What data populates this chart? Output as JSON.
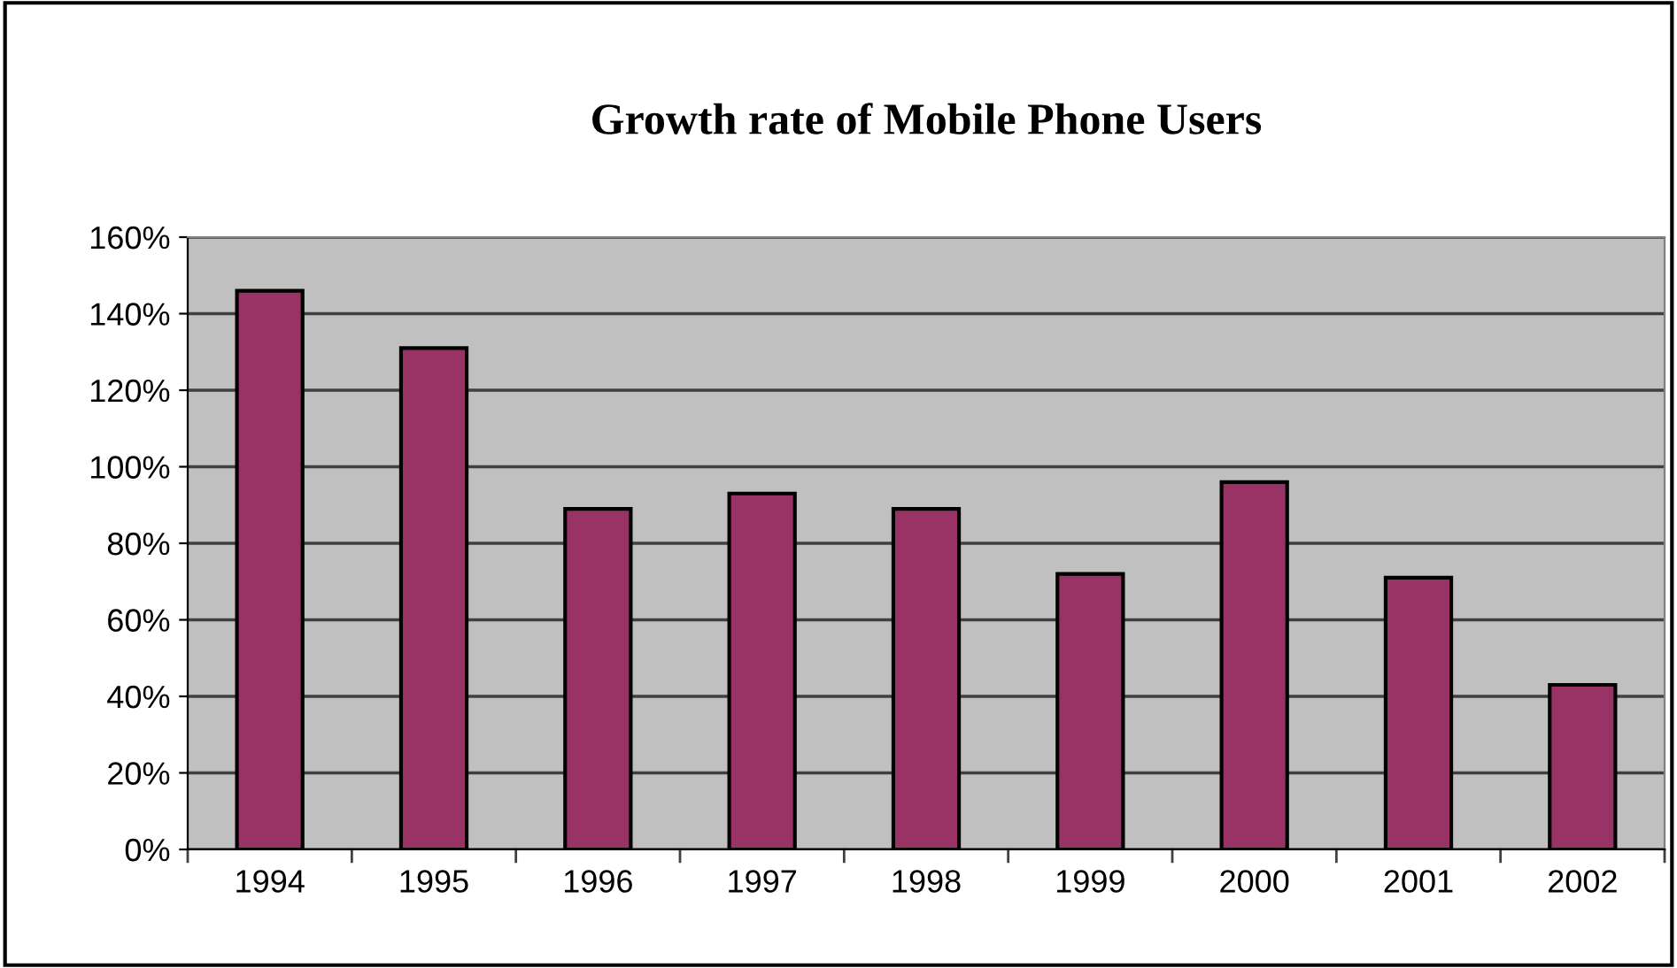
{
  "chart_data": {
    "type": "bar",
    "title": "Growth rate of Mobile Phone Users",
    "categories": [
      "1994",
      "1995",
      "1996",
      "1997",
      "1998",
      "1999",
      "2000",
      "2001",
      "2002"
    ],
    "values": [
      146,
      131,
      89,
      93,
      89,
      72,
      96,
      71,
      43
    ],
    "color": "#993366",
    "ylim": [
      0,
      160
    ],
    "yticks": [
      {
        "value": 0,
        "label": "0%"
      },
      {
        "value": 20,
        "label": "20%"
      },
      {
        "value": 40,
        "label": "40%"
      },
      {
        "value": 60,
        "label": "60%"
      },
      {
        "value": 80,
        "label": "80%"
      },
      {
        "value": 100,
        "label": "100%"
      },
      {
        "value": 120,
        "label": "120%"
      },
      {
        "value": 140,
        "label": "140%"
      },
      {
        "value": 160,
        "label": "160%"
      }
    ],
    "grid": "y",
    "legend": false
  }
}
